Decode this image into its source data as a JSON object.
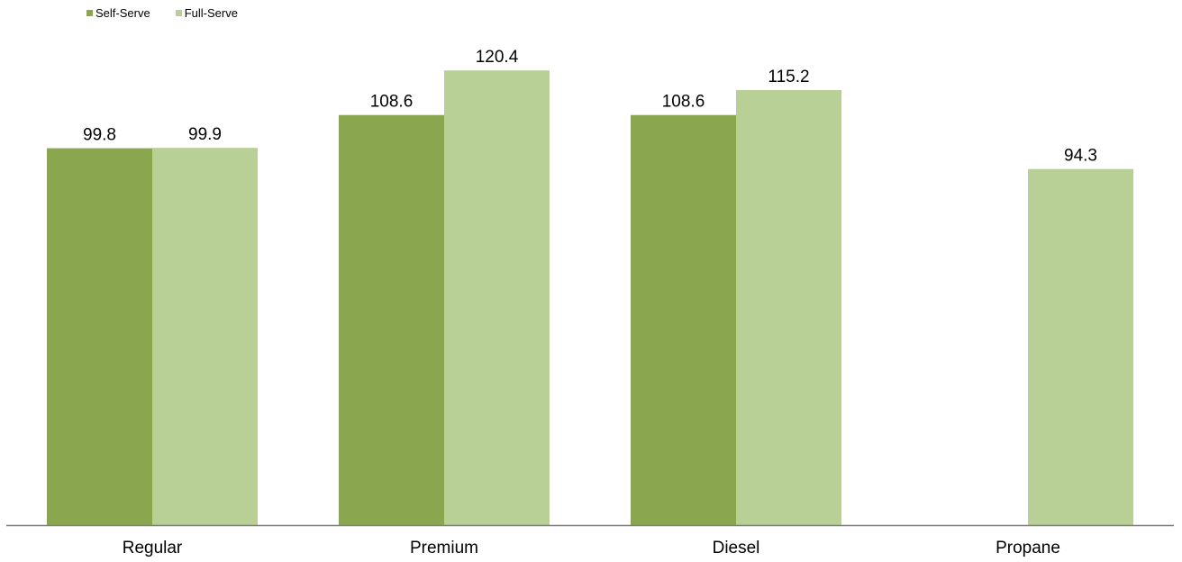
{
  "chart_data": {
    "type": "bar",
    "categories": [
      "Regular",
      "Premium",
      "Diesel",
      "Propane"
    ],
    "series": [
      {
        "name": "Self-Serve",
        "color": "#8aa64e",
        "values": [
          99.8,
          108.6,
          108.6,
          null
        ]
      },
      {
        "name": "Full-Serve",
        "color": "#b8cf95",
        "values": [
          99.9,
          120.4,
          115.2,
          94.3
        ]
      }
    ],
    "ylim": [
      0,
      130
    ],
    "grid": false,
    "legend_position": "top-left",
    "data_labels": true,
    "axis_color": "#7f7f7f"
  }
}
